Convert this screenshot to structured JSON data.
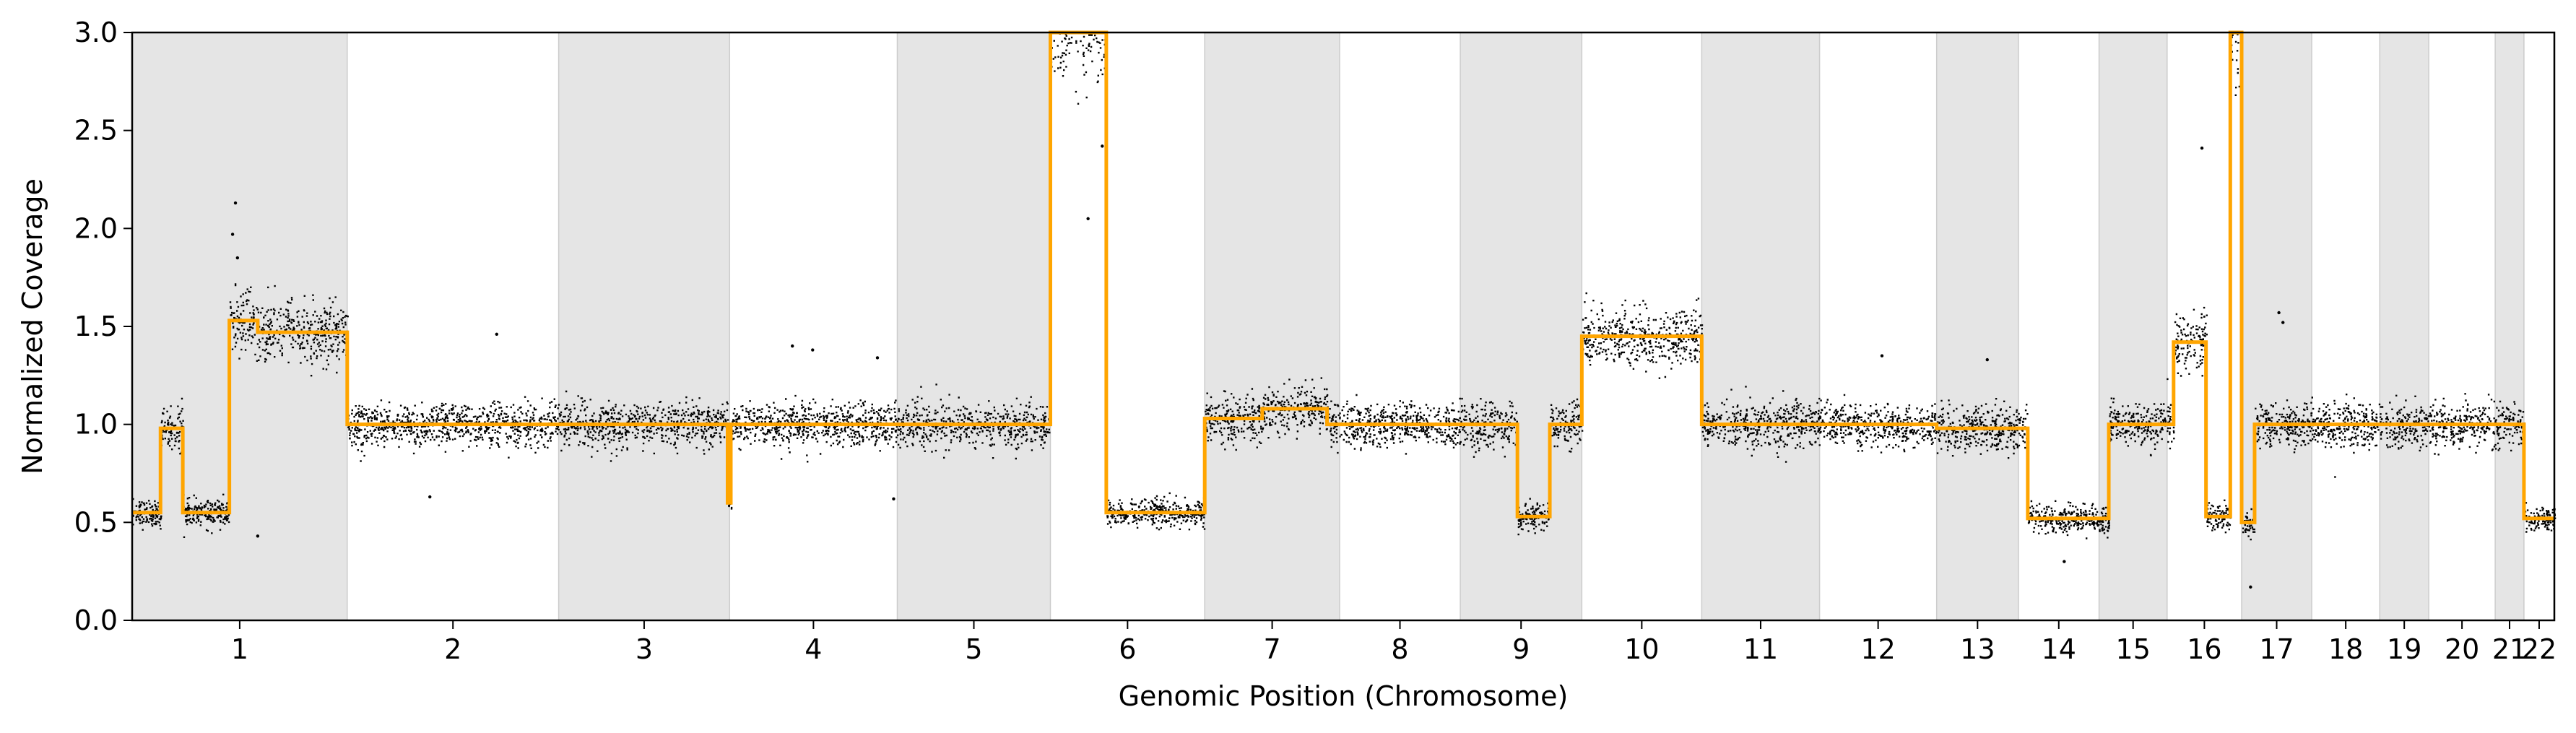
{
  "chart_data": {
    "type": "scatter",
    "xlabel": "Genomic Position (Chromosome)",
    "ylabel": "Normalized Coverage",
    "ylim": [
      0,
      3.0
    ],
    "yticks": [
      0.0,
      0.5,
      1.0,
      1.5,
      2.0,
      2.5,
      3.0
    ],
    "ytick_labels": [
      "0.0",
      "0.5",
      "1.0",
      "1.5",
      "2.0",
      "2.5",
      "3.0"
    ],
    "grid": false,
    "legend": "none",
    "colors": {
      "points": "#000000",
      "segment_line": "#FFA500",
      "band_shaded": "#e5e5e5",
      "band_border": "#cccccc"
    },
    "chromosomes": [
      {
        "label": "1",
        "start": 0,
        "end": 5.31
      },
      {
        "label": "2",
        "start": 5.31,
        "end": 10.53
      },
      {
        "label": "3",
        "start": 10.53,
        "end": 14.75
      },
      {
        "label": "4",
        "start": 14.75,
        "end": 18.89
      },
      {
        "label": "5",
        "start": 18.89,
        "end": 22.67
      },
      {
        "label": "6",
        "start": 22.67,
        "end": 26.48
      },
      {
        "label": "7",
        "start": 26.48,
        "end": 29.81
      },
      {
        "label": "8",
        "start": 29.81,
        "end": 32.79
      },
      {
        "label": "9",
        "start": 32.79,
        "end": 35.79
      },
      {
        "label": "10",
        "start": 35.79,
        "end": 38.75
      },
      {
        "label": "11",
        "start": 38.75,
        "end": 41.66
      },
      {
        "label": "12",
        "start": 41.66,
        "end": 44.55
      },
      {
        "label": "13",
        "start": 44.55,
        "end": 46.57
      },
      {
        "label": "14",
        "start": 46.57,
        "end": 48.56
      },
      {
        "label": "15",
        "start": 48.56,
        "end": 50.24
      },
      {
        "label": "16",
        "start": 50.24,
        "end": 52.08
      },
      {
        "label": "17",
        "start": 52.08,
        "end": 53.81
      },
      {
        "label": "18",
        "start": 53.81,
        "end": 55.49
      },
      {
        "label": "19",
        "start": 55.49,
        "end": 56.7
      },
      {
        "label": "20",
        "start": 56.7,
        "end": 58.34
      },
      {
        "label": "21",
        "start": 58.34,
        "end": 59.05
      },
      {
        "label": "22",
        "start": 59.05,
        "end": 59.8
      }
    ],
    "segments": [
      {
        "x0": 0.0,
        "x1": 0.7,
        "y": 0.55
      },
      {
        "x0": 0.7,
        "x1": 1.25,
        "y": 0.98
      },
      {
        "x0": 1.25,
        "x1": 2.4,
        "y": 0.55
      },
      {
        "x0": 2.4,
        "x1": 3.1,
        "y": 1.53
      },
      {
        "x0": 3.1,
        "x1": 5.31,
        "y": 1.47
      },
      {
        "x0": 5.31,
        "x1": 14.7,
        "y": 1.0
      },
      {
        "x0": 14.7,
        "x1": 14.78,
        "y": 0.6
      },
      {
        "x0": 14.78,
        "x1": 22.67,
        "y": 1.0
      },
      {
        "x0": 22.67,
        "x1": 24.05,
        "y": 3.05
      },
      {
        "x0": 24.05,
        "x1": 26.48,
        "y": 0.55
      },
      {
        "x0": 26.48,
        "x1": 27.9,
        "y": 1.03
      },
      {
        "x0": 27.9,
        "x1": 29.5,
        "y": 1.08
      },
      {
        "x0": 29.5,
        "x1": 34.2,
        "y": 1.0
      },
      {
        "x0": 34.2,
        "x1": 35.0,
        "y": 0.53
      },
      {
        "x0": 35.0,
        "x1": 35.79,
        "y": 1.0
      },
      {
        "x0": 35.79,
        "x1": 38.75,
        "y": 1.45
      },
      {
        "x0": 38.75,
        "x1": 44.55,
        "y": 1.0
      },
      {
        "x0": 44.55,
        "x1": 46.8,
        "y": 0.98
      },
      {
        "x0": 46.8,
        "x1": 48.8,
        "y": 0.52
      },
      {
        "x0": 48.8,
        "x1": 50.4,
        "y": 1.0
      },
      {
        "x0": 50.4,
        "x1": 51.2,
        "y": 1.42
      },
      {
        "x0": 51.2,
        "x1": 51.8,
        "y": 0.53
      },
      {
        "x0": 51.8,
        "x1": 52.08,
        "y": 3.05
      },
      {
        "x0": 52.08,
        "x1": 52.4,
        "y": 0.5
      },
      {
        "x0": 52.4,
        "x1": 59.05,
        "y": 1.0
      },
      {
        "x0": 59.05,
        "x1": 59.8,
        "y": 0.52
      }
    ],
    "outliers": [
      {
        "x": 2.55,
        "y": 2.13
      },
      {
        "x": 2.48,
        "y": 1.97
      },
      {
        "x": 2.6,
        "y": 1.85
      },
      {
        "x": 3.1,
        "y": 0.43
      },
      {
        "x": 9.0,
        "y": 1.46
      },
      {
        "x": 7.35,
        "y": 0.63
      },
      {
        "x": 16.3,
        "y": 1.4
      },
      {
        "x": 16.8,
        "y": 1.38
      },
      {
        "x": 18.4,
        "y": 1.34
      },
      {
        "x": 18.8,
        "y": 0.62
      },
      {
        "x": 23.6,
        "y": 2.05
      },
      {
        "x": 23.95,
        "y": 2.42
      },
      {
        "x": 43.2,
        "y": 1.35
      },
      {
        "x": 45.8,
        "y": 1.33
      },
      {
        "x": 47.7,
        "y": 0.3
      },
      {
        "x": 51.1,
        "y": 2.41
      },
      {
        "x": 52.3,
        "y": 0.17
      },
      {
        "x": 53.0,
        "y": 1.57
      },
      {
        "x": 53.1,
        "y": 1.52
      }
    ]
  }
}
